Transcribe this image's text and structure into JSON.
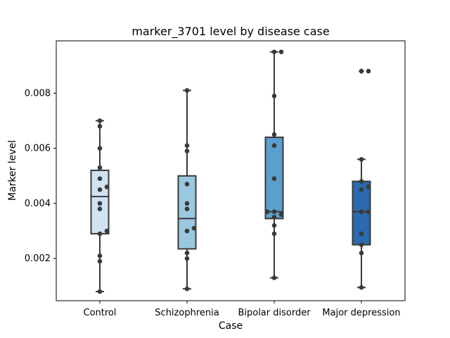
{
  "chart_data": {
    "type": "box",
    "title": "marker_3701 level by disease case",
    "xlabel": "Case",
    "ylabel": "Marker level",
    "ylim": [
      0.00047,
      0.0099
    ],
    "yticks": [
      0.002,
      0.004,
      0.006,
      0.008
    ],
    "ytick_labels": [
      "0.002",
      "0.004",
      "0.006",
      "0.008"
    ],
    "categories": [
      "Control",
      "Schizophrenia",
      "Bipolar disorder",
      "Major depression"
    ],
    "colors": [
      "#d1e2f2",
      "#9ac8e0",
      "#5a9fcd",
      "#2a6aae"
    ],
    "boxes": [
      {
        "category": "Control",
        "whisker_low": 0.0008,
        "q1": 0.0029,
        "median": 0.00425,
        "q3": 0.0052,
        "whisker_high": 0.007,
        "fliers": []
      },
      {
        "category": "Schizophrenia",
        "whisker_low": 0.0009,
        "q1": 0.00235,
        "median": 0.00345,
        "q3": 0.005,
        "whisker_high": 0.0081,
        "fliers": []
      },
      {
        "category": "Bipolar disorder",
        "whisker_low": 0.0013,
        "q1": 0.00345,
        "median": 0.0037,
        "q3": 0.0064,
        "whisker_high": 0.0095,
        "fliers": []
      },
      {
        "category": "Major depression",
        "whisker_low": 0.00095,
        "q1": 0.0025,
        "median": 0.0037,
        "q3": 0.0048,
        "whisker_high": 0.0056,
        "fliers": [
          0.0088,
          0.0088
        ]
      }
    ],
    "points": [
      [
        0.0008,
        0.0019,
        0.0021,
        0.0029,
        0.003,
        0.0038,
        0.004,
        0.0045,
        0.0046,
        0.0049,
        0.0053,
        0.006,
        0.0068,
        0.007
      ],
      [
        0.0009,
        0.002,
        0.0022,
        0.003,
        0.0031,
        0.0038,
        0.004,
        0.0047,
        0.0059,
        0.0061,
        0.0081
      ],
      [
        0.0013,
        0.0029,
        0.0032,
        0.0035,
        0.0036,
        0.0037,
        0.0037,
        0.0049,
        0.0061,
        0.0065,
        0.0079,
        0.0095,
        0.0095
      ],
      [
        0.00095,
        0.0022,
        0.0025,
        0.0029,
        0.0037,
        0.0037,
        0.0045,
        0.0046,
        0.0048,
        0.0056,
        0.0088,
        0.0088
      ]
    ],
    "grid": false,
    "legend": "none"
  }
}
